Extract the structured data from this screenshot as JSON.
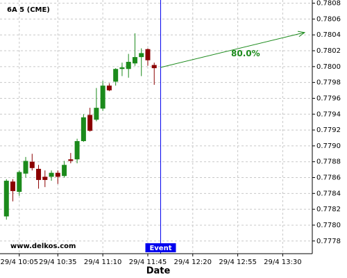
{
  "chart_data": {
    "type": "candlestick",
    "title": "6A 5 (CME)",
    "x_label": "Date",
    "watermark": "www.delkos.com",
    "x": [
      595,
      600,
      605,
      610,
      615,
      620,
      625,
      630,
      635,
      640,
      645,
      650,
      655,
      660,
      665,
      670,
      675,
      680,
      685,
      690,
      695,
      700,
      705,
      710
    ],
    "open": [
      0.77811,
      0.77855,
      0.77842,
      0.77865,
      0.7788,
      0.77871,
      0.77861,
      0.77861,
      0.77866,
      0.77862,
      0.77883,
      0.77883,
      0.77906,
      0.77939,
      0.77933,
      0.77947,
      0.77976,
      0.77981,
      0.77997,
      0.77997,
      0.78004,
      0.78012,
      0.78022,
      0.78002
    ],
    "high": [
      0.77858,
      0.77858,
      0.77869,
      0.77886,
      0.7789,
      0.77876,
      0.77869,
      0.77869,
      0.77869,
      0.77881,
      0.77891,
      0.77909,
      0.7794,
      0.77948,
      0.77973,
      0.77982,
      0.77979,
      0.77998,
      0.78005,
      0.78016,
      0.78042,
      0.78023,
      0.78023,
      0.78005
    ],
    "low": [
      0.77807,
      0.7783,
      0.77837,
      0.7786,
      0.77869,
      0.77846,
      0.77848,
      0.77856,
      0.77852,
      0.7786,
      0.77878,
      0.77878,
      0.77905,
      0.77918,
      0.77931,
      0.77944,
      0.77969,
      0.77976,
      0.77988,
      0.77986,
      0.78001,
      0.77988,
      0.78001,
      0.77977
    ],
    "close": [
      0.77856,
      0.77843,
      0.77867,
      0.77881,
      0.77872,
      0.77857,
      0.77857,
      0.77866,
      0.77861,
      0.77876,
      0.77881,
      0.77906,
      0.77936,
      0.77919,
      0.77948,
      0.77976,
      0.7797,
      0.77997,
      0.77999,
      0.78006,
      0.78012,
      0.78017,
      0.78008,
      0.77998
    ],
    "up_color": "#1b8a1b",
    "down_color": "#8b0000",
    "xlim": [
      590,
      833
    ],
    "xticks": [
      {
        "value": 605,
        "label": "29/4 10:05"
      },
      {
        "value": 635,
        "label": "29/4 10:35"
      },
      {
        "value": 670,
        "label": "29/4 11:10"
      },
      {
        "value": 705,
        "label": "29/4 11:45"
      },
      {
        "value": 740,
        "label": "29/4 12:20"
      },
      {
        "value": 775,
        "label": "29/4 12:55"
      },
      {
        "value": 810,
        "label": "29/4 13:30"
      }
    ],
    "ylim": [
      0.77764,
      0.78084
    ],
    "yticks": [
      0.7778,
      {
        "value": 0.778,
        "label": "0.7780"
      },
      0.7782,
      0.7784,
      0.7786,
      0.7788,
      {
        "value": 0.779,
        "label": "0.7790"
      },
      0.7792,
      0.7794,
      0.7796,
      0.7798,
      {
        "value": 0.78,
        "label": "0.7800"
      },
      0.7802,
      0.7804,
      0.7806,
      0.7808
    ],
    "grid": true,
    "event": {
      "x": 715,
      "label": "Event",
      "color": "#0000ee"
    },
    "projection": {
      "x": [
        715,
        827
      ],
      "y": [
        0.77999,
        0.78043
      ],
      "label": "80.0%",
      "color": "#1b8a1b"
    }
  }
}
